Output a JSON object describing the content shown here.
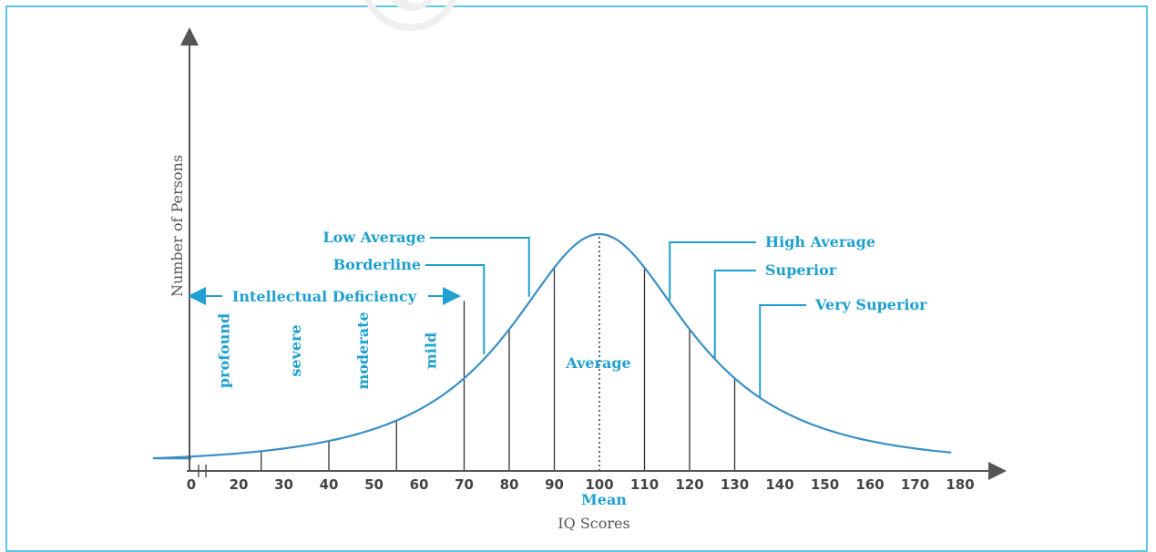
{
  "watermark": "© not to be re",
  "chart_data": {
    "type": "line",
    "xlabel": "IQ Scores",
    "ylabel": "Number of Persons",
    "x_ticks": [
      0,
      20,
      30,
      40,
      50,
      60,
      70,
      80,
      90,
      100,
      110,
      120,
      130,
      140,
      150,
      160,
      170,
      180
    ],
    "mean_value": 100,
    "mean_label": "Mean",
    "category_boundaries": [
      25,
      40,
      55,
      70,
      80,
      90,
      110,
      120,
      130
    ],
    "bands": [
      {
        "label": "profound",
        "from": 0,
        "to": 25
      },
      {
        "label": "severe",
        "from": 25,
        "to": 40
      },
      {
        "label": "moderate",
        "from": 40,
        "to": 55
      },
      {
        "label": "mild",
        "from": 55,
        "to": 70
      }
    ],
    "range_label": "Intellectual Deficiency",
    "center_label": "Average",
    "callouts": [
      {
        "label": "Low Average",
        "at": 85
      },
      {
        "label": "Borderline",
        "at": 75
      },
      {
        "label": "High Average",
        "at": 115
      },
      {
        "label": "Superior",
        "at": 125
      },
      {
        "label": "Very Superior",
        "at": 135
      }
    ],
    "colors": {
      "curve": "#3a8fc4",
      "label": "#1fa0cf",
      "frame": "#5cc6e8",
      "axis": "#555555"
    }
  }
}
